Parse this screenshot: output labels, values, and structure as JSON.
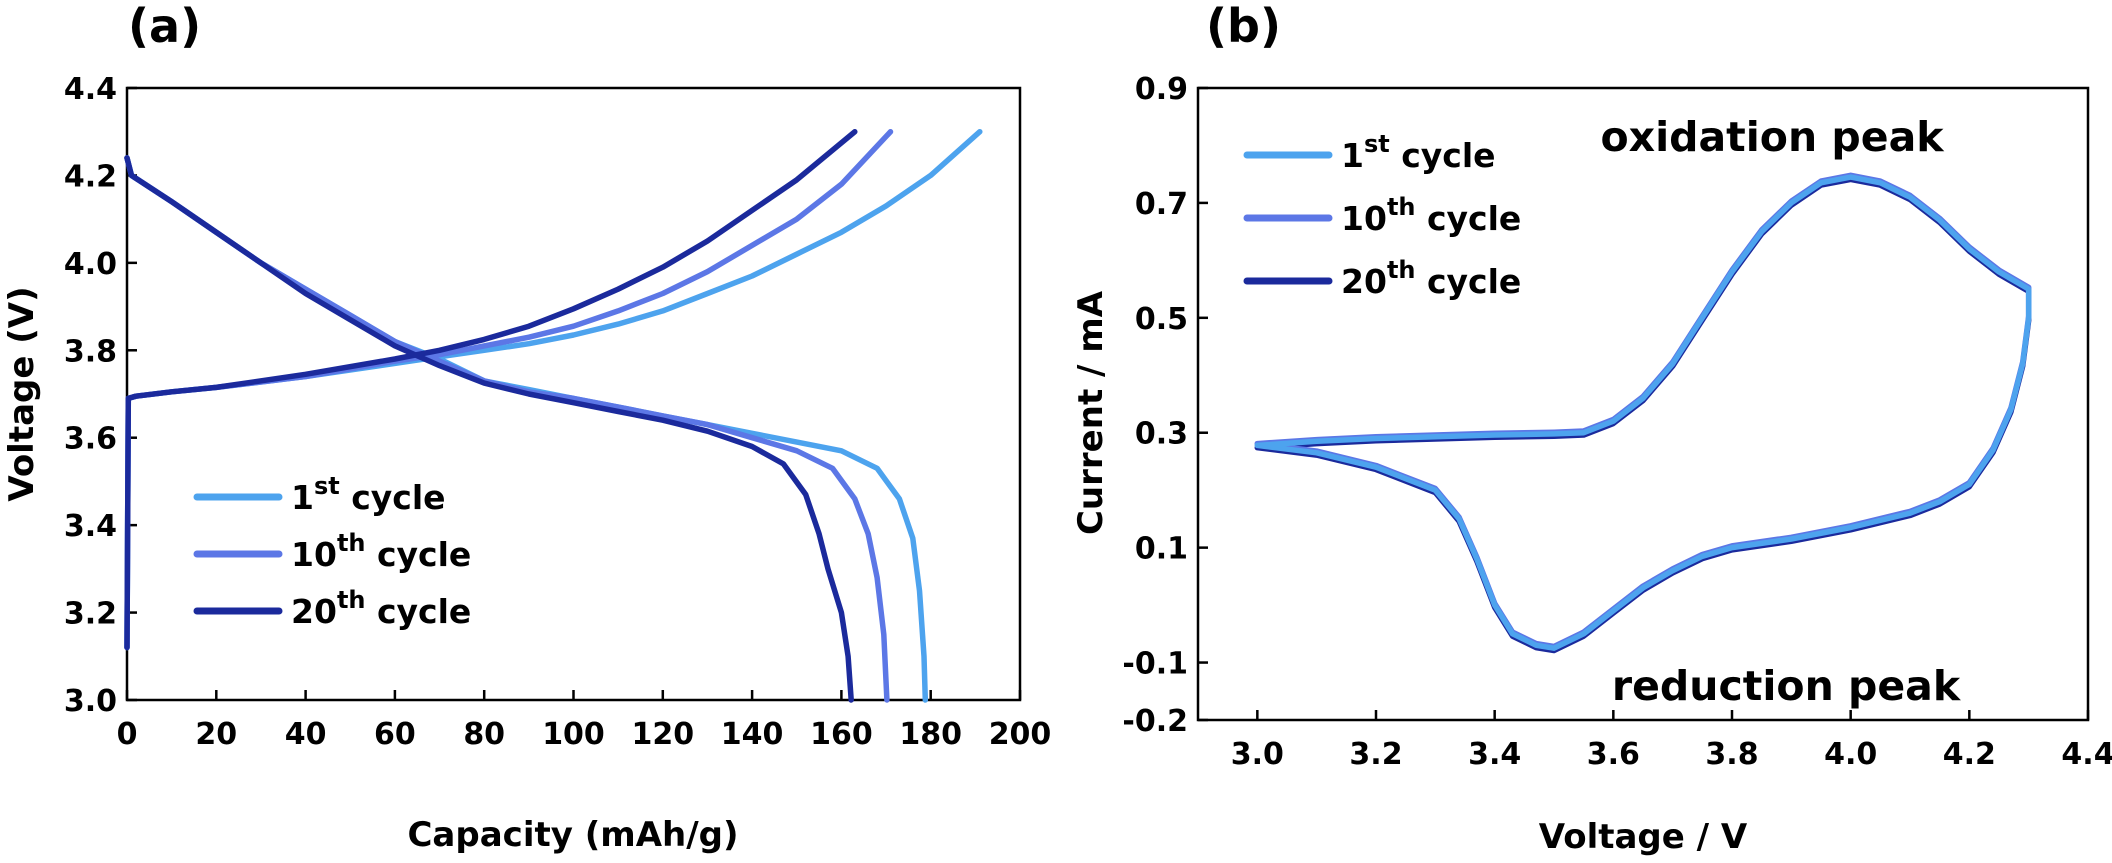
{
  "chart_data": [
    {
      "panel_label": "(a)",
      "type": "line",
      "xlabel": "Capacity (mAh/g)",
      "ylabel": "Voltage (V)",
      "xlim": [
        0,
        200
      ],
      "ylim": [
        3.0,
        4.4
      ],
      "x_ticks": [
        "0",
        "20",
        "40",
        "60",
        "80",
        "100",
        "120",
        "140",
        "160",
        "180",
        "200"
      ],
      "y_ticks": [
        "3.0",
        "3.2",
        "3.4",
        "3.6",
        "3.8",
        "4.0",
        "4.2",
        "4.4"
      ],
      "grid": false,
      "legend_position": "bottom-left",
      "series": [
        {
          "legend": {
            "base": "1",
            "sup": "st",
            "rest": " cycle"
          },
          "color": "#4da3ee",
          "charge": [
            [
              0,
              3.12
            ],
            [
              0.3,
              3.69
            ],
            [
              2,
              3.695
            ],
            [
              10,
              3.705
            ],
            [
              20,
              3.715
            ],
            [
              40,
              3.74
            ],
            [
              60,
              3.77
            ],
            [
              70,
              3.785
            ],
            [
              80,
              3.8
            ],
            [
              90,
              3.815
            ],
            [
              100,
              3.835
            ],
            [
              110,
              3.86
            ],
            [
              120,
              3.89
            ],
            [
              130,
              3.93
            ],
            [
              140,
              3.97
            ],
            [
              150,
              4.02
            ],
            [
              160,
              4.07
            ],
            [
              170,
              4.13
            ],
            [
              180,
              4.2
            ],
            [
              191,
              4.3
            ]
          ],
          "discharge": [
            [
              0,
              4.24
            ],
            [
              1,
              4.2
            ],
            [
              10,
              4.14
            ],
            [
              20,
              4.07
            ],
            [
              30,
              4.0
            ],
            [
              40,
              3.94
            ],
            [
              50,
              3.88
            ],
            [
              60,
              3.82
            ],
            [
              70,
              3.78
            ],
            [
              80,
              3.73
            ],
            [
              90,
              3.71
            ],
            [
              100,
              3.69
            ],
            [
              110,
              3.67
            ],
            [
              120,
              3.65
            ],
            [
              130,
              3.63
            ],
            [
              140,
              3.61
            ],
            [
              150,
              3.59
            ],
            [
              160,
              3.57
            ],
            [
              168,
              3.53
            ],
            [
              173,
              3.46
            ],
            [
              176,
              3.37
            ],
            [
              177.5,
              3.25
            ],
            [
              178.5,
              3.1
            ],
            [
              178.8,
              3.0
            ]
          ]
        },
        {
          "legend": {
            "base": "10",
            "sup": "th",
            "rest": " cycle"
          },
          "color": "#5c77e6",
          "charge": [
            [
              0,
              3.12
            ],
            [
              0.3,
              3.69
            ],
            [
              2,
              3.695
            ],
            [
              10,
              3.705
            ],
            [
              20,
              3.715
            ],
            [
              40,
              3.74
            ],
            [
              60,
              3.775
            ],
            [
              70,
              3.79
            ],
            [
              80,
              3.81
            ],
            [
              90,
              3.83
            ],
            [
              100,
              3.855
            ],
            [
              110,
              3.89
            ],
            [
              120,
              3.93
            ],
            [
              130,
              3.98
            ],
            [
              140,
              4.04
            ],
            [
              150,
              4.1
            ],
            [
              160,
              4.18
            ],
            [
              171,
              4.3
            ]
          ],
          "discharge": [
            [
              0,
              4.24
            ],
            [
              1,
              4.2
            ],
            [
              10,
              4.14
            ],
            [
              20,
              4.07
            ],
            [
              30,
              4.0
            ],
            [
              40,
              3.94
            ],
            [
              50,
              3.88
            ],
            [
              60,
              3.82
            ],
            [
              70,
              3.775
            ],
            [
              80,
              3.73
            ],
            [
              90,
              3.705
            ],
            [
              100,
              3.69
            ],
            [
              110,
              3.67
            ],
            [
              120,
              3.65
            ],
            [
              130,
              3.63
            ],
            [
              140,
              3.6
            ],
            [
              150,
              3.57
            ],
            [
              158,
              3.53
            ],
            [
              163,
              3.46
            ],
            [
              166,
              3.38
            ],
            [
              168,
              3.28
            ],
            [
              169.5,
              3.15
            ],
            [
              170.2,
              3.0
            ]
          ]
        },
        {
          "legend": {
            "base": "20",
            "sup": "th",
            "rest": " cycle"
          },
          "color": "#1b2a9c",
          "charge": [
            [
              0,
              3.12
            ],
            [
              0.3,
              3.69
            ],
            [
              2,
              3.695
            ],
            [
              10,
              3.705
            ],
            [
              20,
              3.715
            ],
            [
              40,
              3.745
            ],
            [
              60,
              3.78
            ],
            [
              70,
              3.8
            ],
            [
              80,
              3.825
            ],
            [
              90,
              3.855
            ],
            [
              100,
              3.895
            ],
            [
              110,
              3.94
            ],
            [
              120,
              3.99
            ],
            [
              130,
              4.05
            ],
            [
              140,
              4.12
            ],
            [
              150,
              4.19
            ],
            [
              163,
              4.3
            ]
          ],
          "discharge": [
            [
              0,
              4.24
            ],
            [
              1,
              4.2
            ],
            [
              10,
              4.14
            ],
            [
              20,
              4.07
            ],
            [
              30,
              4.0
            ],
            [
              40,
              3.93
            ],
            [
              50,
              3.87
            ],
            [
              60,
              3.81
            ],
            [
              70,
              3.765
            ],
            [
              80,
              3.725
            ],
            [
              90,
              3.7
            ],
            [
              100,
              3.68
            ],
            [
              110,
              3.66
            ],
            [
              120,
              3.64
            ],
            [
              130,
              3.615
            ],
            [
              140,
              3.58
            ],
            [
              147,
              3.54
            ],
            [
              152,
              3.47
            ],
            [
              155,
              3.38
            ],
            [
              157,
              3.3
            ],
            [
              160,
              3.2
            ],
            [
              161.5,
              3.1
            ],
            [
              162.2,
              3.0
            ]
          ]
        }
      ]
    },
    {
      "panel_label": "(b)",
      "type": "line",
      "xlabel": "Voltage / V",
      "ylabel": "Current / mA",
      "xlim": [
        2.9,
        4.4
      ],
      "ylim": [
        -0.2,
        0.9
      ],
      "x_ticks": [
        "3.0",
        "3.2",
        "3.4",
        "3.6",
        "3.8",
        "4.0",
        "4.2",
        "4.4"
      ],
      "y_ticks": [
        "-0.2",
        "-0.1",
        "0.1",
        "0.3",
        "0.5",
        "0.7",
        "0.9"
      ],
      "grid": false,
      "legend_position": "top-left",
      "annotations": [
        "oxidation peak",
        "reduction peak"
      ],
      "series": [
        {
          "legend": {
            "base": "1",
            "sup": "st",
            "rest": " cycle"
          },
          "color": "#4da3ee"
        },
        {
          "legend": {
            "base": "10",
            "sup": "th",
            "rest": " cycle"
          },
          "color": "#5c77e6"
        },
        {
          "legend": {
            "base": "20",
            "sup": "th",
            "rest": " cycle"
          },
          "color": "#1b2a9c"
        }
      ],
      "loop": [
        [
          3.0,
          0.278
        ],
        [
          3.1,
          0.285
        ],
        [
          3.2,
          0.29
        ],
        [
          3.3,
          0.293
        ],
        [
          3.4,
          0.296
        ],
        [
          3.5,
          0.298
        ],
        [
          3.55,
          0.3
        ],
        [
          3.6,
          0.32
        ],
        [
          3.65,
          0.36
        ],
        [
          3.7,
          0.42
        ],
        [
          3.75,
          0.5
        ],
        [
          3.8,
          0.58
        ],
        [
          3.85,
          0.65
        ],
        [
          3.9,
          0.7
        ],
        [
          3.95,
          0.735
        ],
        [
          4.0,
          0.745
        ],
        [
          4.05,
          0.735
        ],
        [
          4.1,
          0.71
        ],
        [
          4.15,
          0.67
        ],
        [
          4.2,
          0.62
        ],
        [
          4.25,
          0.58
        ],
        [
          4.3,
          0.55
        ],
        [
          4.3,
          0.5
        ],
        [
          4.29,
          0.42
        ],
        [
          4.27,
          0.34
        ],
        [
          4.24,
          0.27
        ],
        [
          4.2,
          0.21
        ],
        [
          4.15,
          0.18
        ],
        [
          4.1,
          0.16
        ],
        [
          4.0,
          0.135
        ],
        [
          3.9,
          0.115
        ],
        [
          3.8,
          0.1
        ],
        [
          3.75,
          0.085
        ],
        [
          3.7,
          0.06
        ],
        [
          3.65,
          0.03
        ],
        [
          3.6,
          -0.01
        ],
        [
          3.55,
          -0.05
        ],
        [
          3.5,
          -0.075
        ],
        [
          3.47,
          -0.07
        ],
        [
          3.43,
          -0.05
        ],
        [
          3.4,
          0.0
        ],
        [
          3.37,
          0.08
        ],
        [
          3.34,
          0.15
        ],
        [
          3.3,
          0.2
        ],
        [
          3.2,
          0.24
        ],
        [
          3.1,
          0.265
        ],
        [
          3.0,
          0.278
        ]
      ]
    }
  ]
}
